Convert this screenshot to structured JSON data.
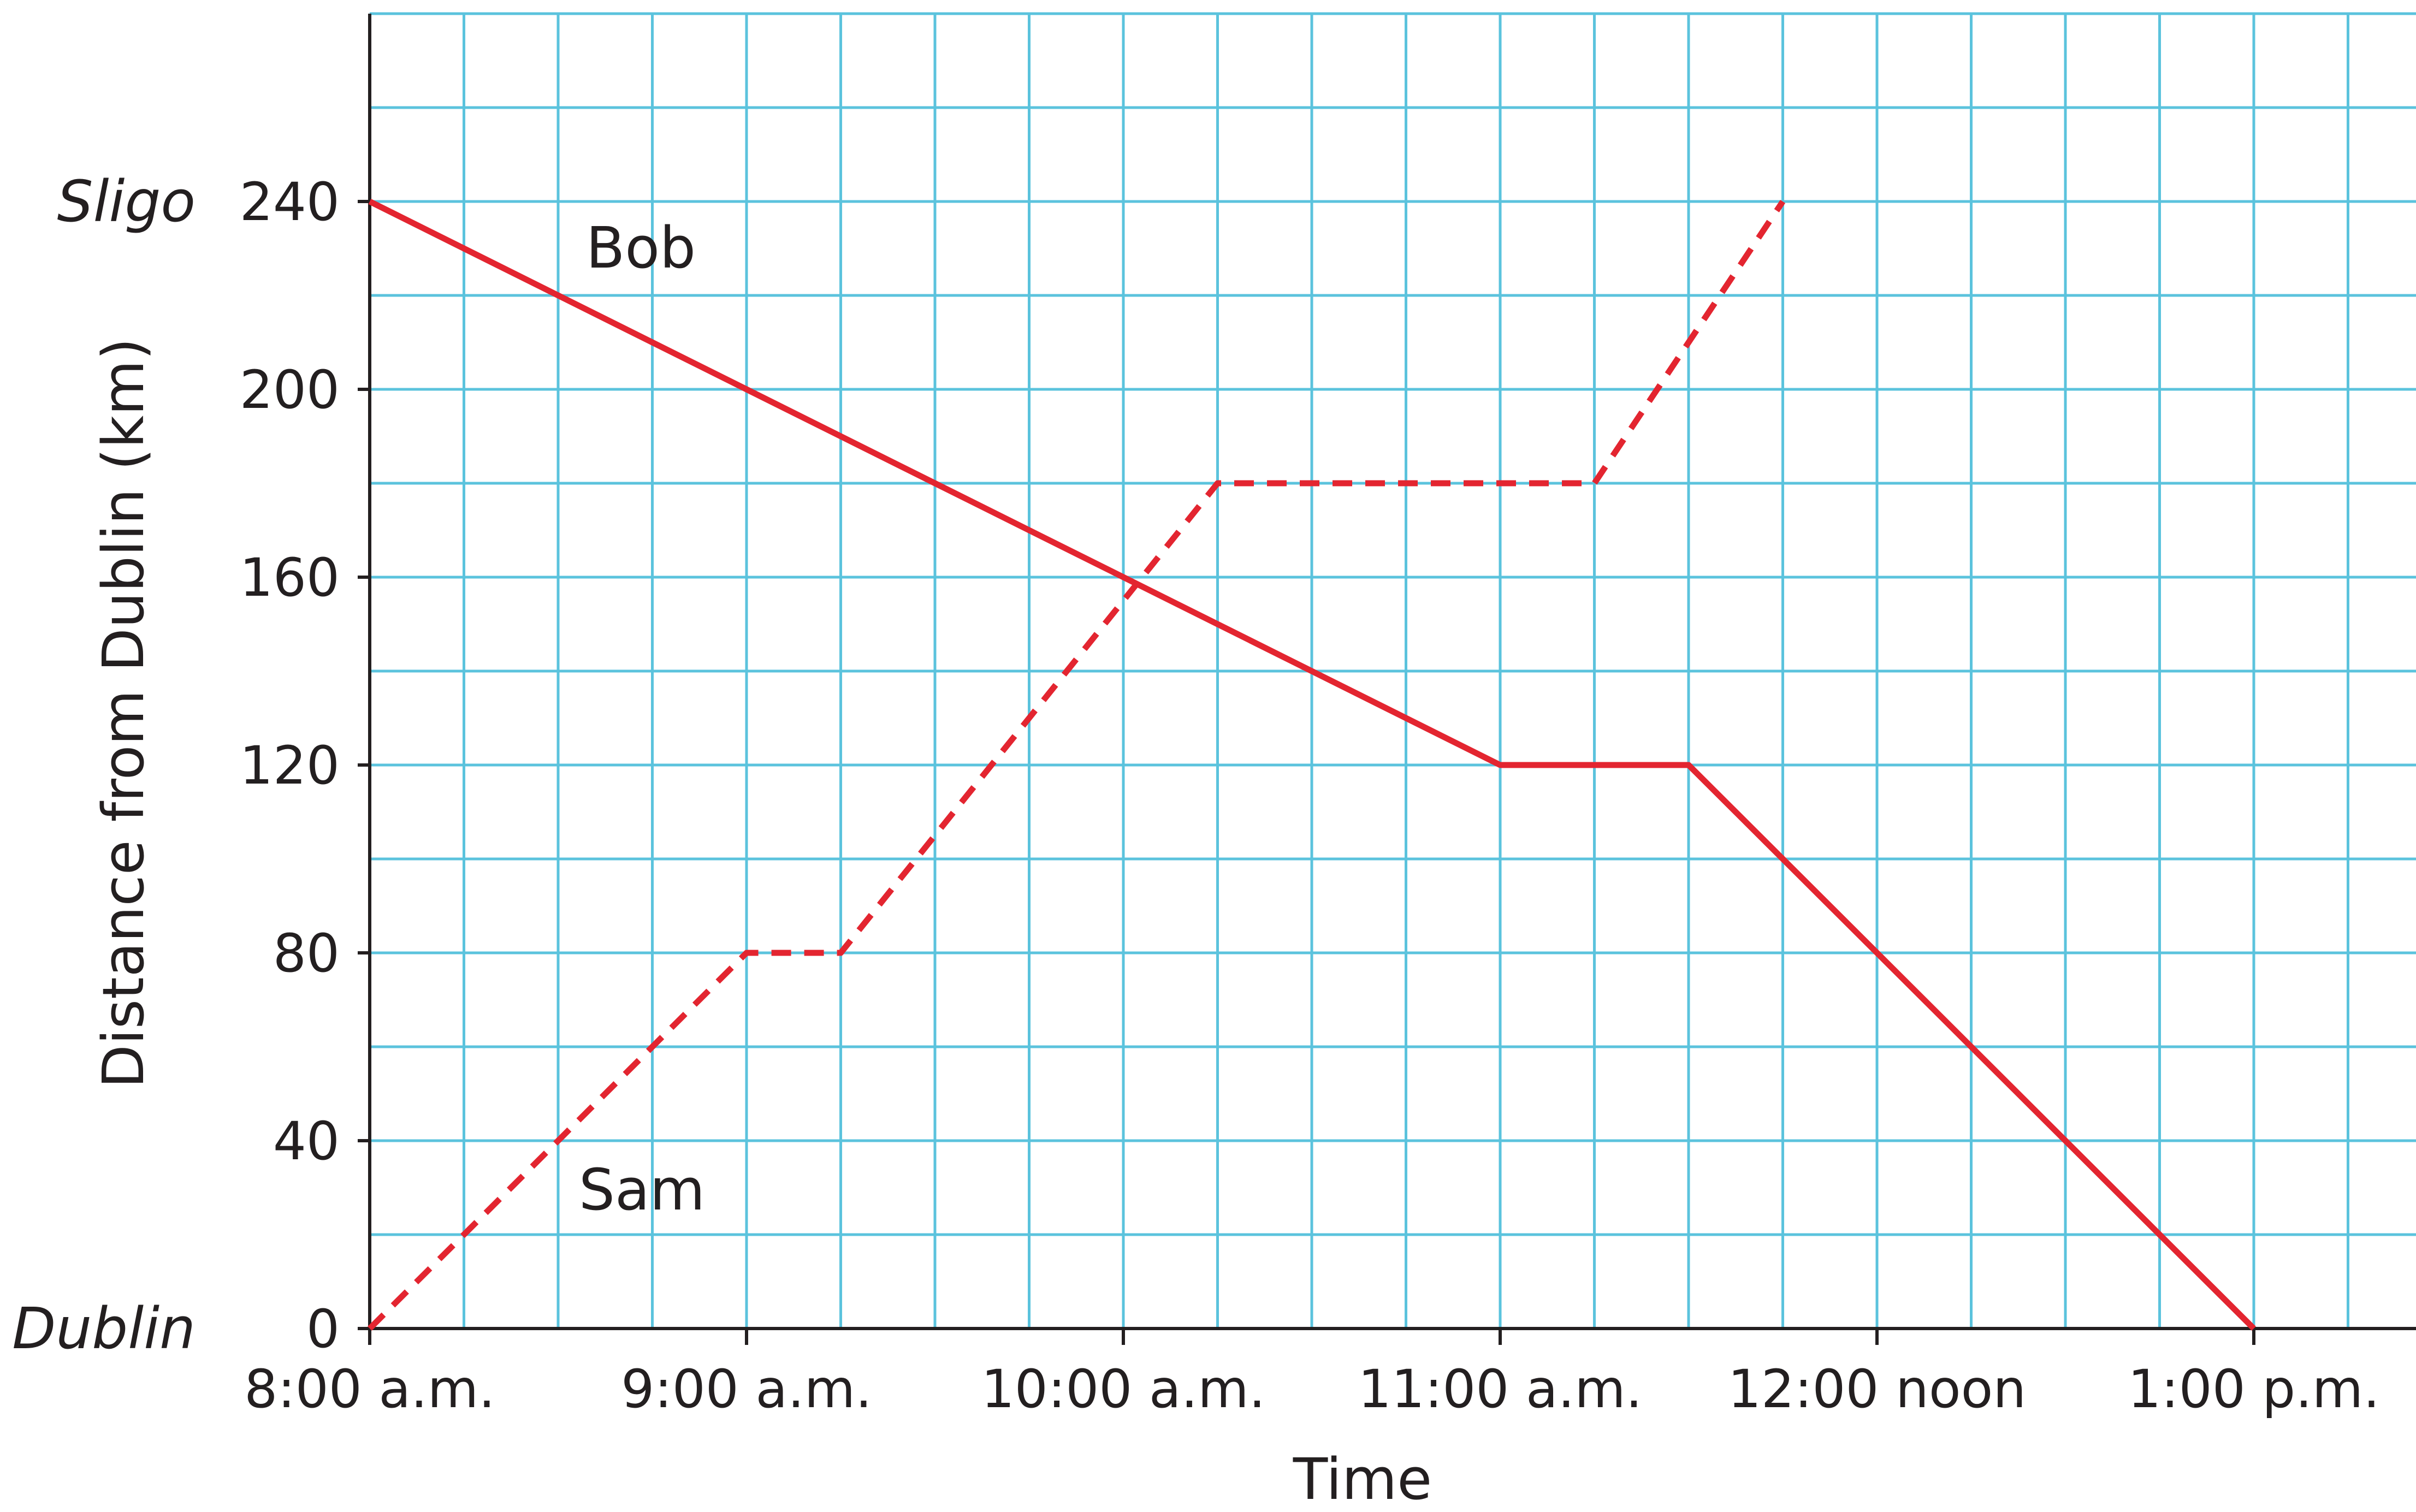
{
  "chart_data": {
    "type": "line",
    "xlabel": "Time",
    "ylabel": "Distance from Dublin (km)",
    "x_unit": "hours past 8:00 a.m.",
    "xlim": [
      0,
      5.5
    ],
    "ylim": [
      0,
      280
    ],
    "grid": true,
    "x_minor_step": 0.25,
    "y_minor_step": 20,
    "x_ticks": [
      {
        "value": 0,
        "label": "8:00 a.m."
      },
      {
        "value": 1,
        "label": "9:00 a.m."
      },
      {
        "value": 2,
        "label": "10:00 a.m."
      },
      {
        "value": 3,
        "label": "11:00 a.m."
      },
      {
        "value": 4,
        "label": "12:00 noon"
      },
      {
        "value": 5,
        "label": "1:00 p.m."
      }
    ],
    "y_ticks": [
      {
        "value": 0,
        "label": "0"
      },
      {
        "value": 40,
        "label": "40"
      },
      {
        "value": 80,
        "label": "80"
      },
      {
        "value": 120,
        "label": "120"
      },
      {
        "value": 160,
        "label": "160"
      },
      {
        "value": 200,
        "label": "200"
      },
      {
        "value": 240,
        "label": "240"
      }
    ],
    "place_labels": [
      {
        "value": 240,
        "label": "Sligo"
      },
      {
        "value": 0,
        "label": "Dublin"
      }
    ],
    "series": [
      {
        "name": "Bob",
        "style": "solid",
        "color": "#e32530",
        "points": [
          [
            0,
            240
          ],
          [
            3,
            120
          ],
          [
            3.5,
            120
          ],
          [
            5,
            0
          ]
        ]
      },
      {
        "name": "Sam",
        "style": "dashed",
        "color": "#e32530",
        "points": [
          [
            0,
            0
          ],
          [
            1,
            80
          ],
          [
            1.25,
            80
          ],
          [
            2.25,
            180
          ],
          [
            3.25,
            180
          ],
          [
            3.75,
            240
          ]
        ]
      }
    ]
  }
}
